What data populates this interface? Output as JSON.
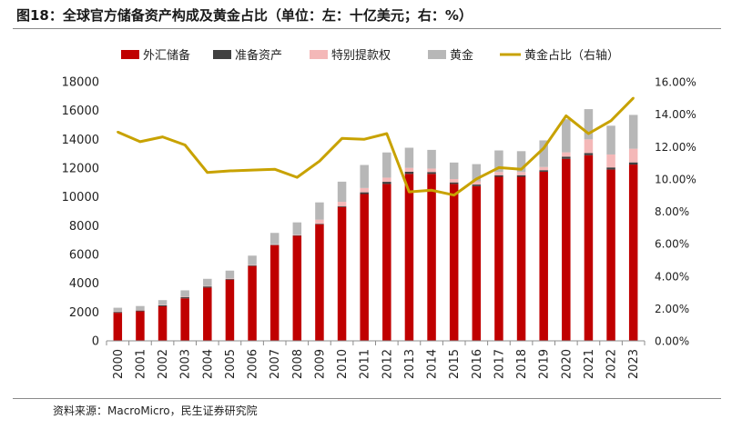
{
  "header": {
    "title": "图18：全球官方储备资产构成及黄金占比（单位：左：十亿美元；右：%）"
  },
  "footer": {
    "source": "资料来源：MacroMicro，民生证券研究院"
  },
  "chart_data": {
    "type": "bar",
    "stacked": true,
    "title": "图18：全球官方储备资产构成及黄金占比（单位：左：十亿美元；右：%）",
    "categories": [
      "2000",
      "2001",
      "2002",
      "2003",
      "2004",
      "2005",
      "2006",
      "2007",
      "2008",
      "2009",
      "2010",
      "2011",
      "2012",
      "2013",
      "2014",
      "2015",
      "2016",
      "2017",
      "2018",
      "2019",
      "2020",
      "2021",
      "2022",
      "2023"
    ],
    "series": [
      {
        "name": "外汇储备",
        "type": "bar",
        "axis": "left",
        "color": "#c00000",
        "values": [
          1950,
          2050,
          2400,
          2950,
          3700,
          4250,
          5200,
          6650,
          7300,
          8100,
          9300,
          10200,
          10900,
          11600,
          11600,
          10900,
          10750,
          11400,
          11400,
          11750,
          12650,
          12900,
          11900,
          12250
        ]
      },
      {
        "name": "准备资产",
        "type": "bar",
        "axis": "left",
        "color": "#404040",
        "values": [
          60,
          60,
          70,
          80,
          80,
          50,
          40,
          30,
          30,
          40,
          60,
          120,
          150,
          150,
          130,
          110,
          110,
          110,
          110,
          110,
          150,
          150,
          150,
          150
        ]
      },
      {
        "name": "特别提款权",
        "type": "bar",
        "axis": "left",
        "color": "#f4b8b8",
        "values": [
          30,
          30,
          30,
          30,
          30,
          30,
          30,
          30,
          30,
          280,
          300,
          300,
          290,
          270,
          240,
          230,
          220,
          220,
          220,
          220,
          300,
          950,
          900,
          950
        ]
      },
      {
        "name": "黄金",
        "type": "bar",
        "axis": "left",
        "color": "#b7b7b7",
        "values": [
          260,
          280,
          330,
          450,
          500,
          550,
          650,
          790,
          870,
          1200,
          1400,
          1600,
          1750,
          1400,
          1300,
          1150,
          1200,
          1500,
          1450,
          1850,
          2300,
          2100,
          2000,
          2350
        ]
      },
      {
        "name": "黄金占比（右轴）",
        "type": "line",
        "axis": "right",
        "color": "#c8a200",
        "values": [
          12.9,
          12.3,
          12.6,
          12.1,
          10.4,
          10.5,
          10.55,
          10.6,
          10.1,
          11.1,
          12.5,
          12.45,
          12.8,
          9.2,
          9.3,
          9.0,
          10.0,
          10.7,
          10.6,
          11.9,
          13.9,
          12.8,
          13.6,
          15.0
        ]
      }
    ],
    "yleft": {
      "min": 0,
      "max": 18000,
      "ticks": [
        "0",
        "2000",
        "4000",
        "6000",
        "8000",
        "10000",
        "12000",
        "14000",
        "16000",
        "18000"
      ]
    },
    "yright": {
      "min": 0,
      "max": 16,
      "ticks": [
        "0.00%",
        "2.00%",
        "4.00%",
        "6.00%",
        "8.00%",
        "10.00%",
        "12.00%",
        "14.00%",
        "16.00%"
      ]
    },
    "legend_position": "top",
    "grid": false
  }
}
